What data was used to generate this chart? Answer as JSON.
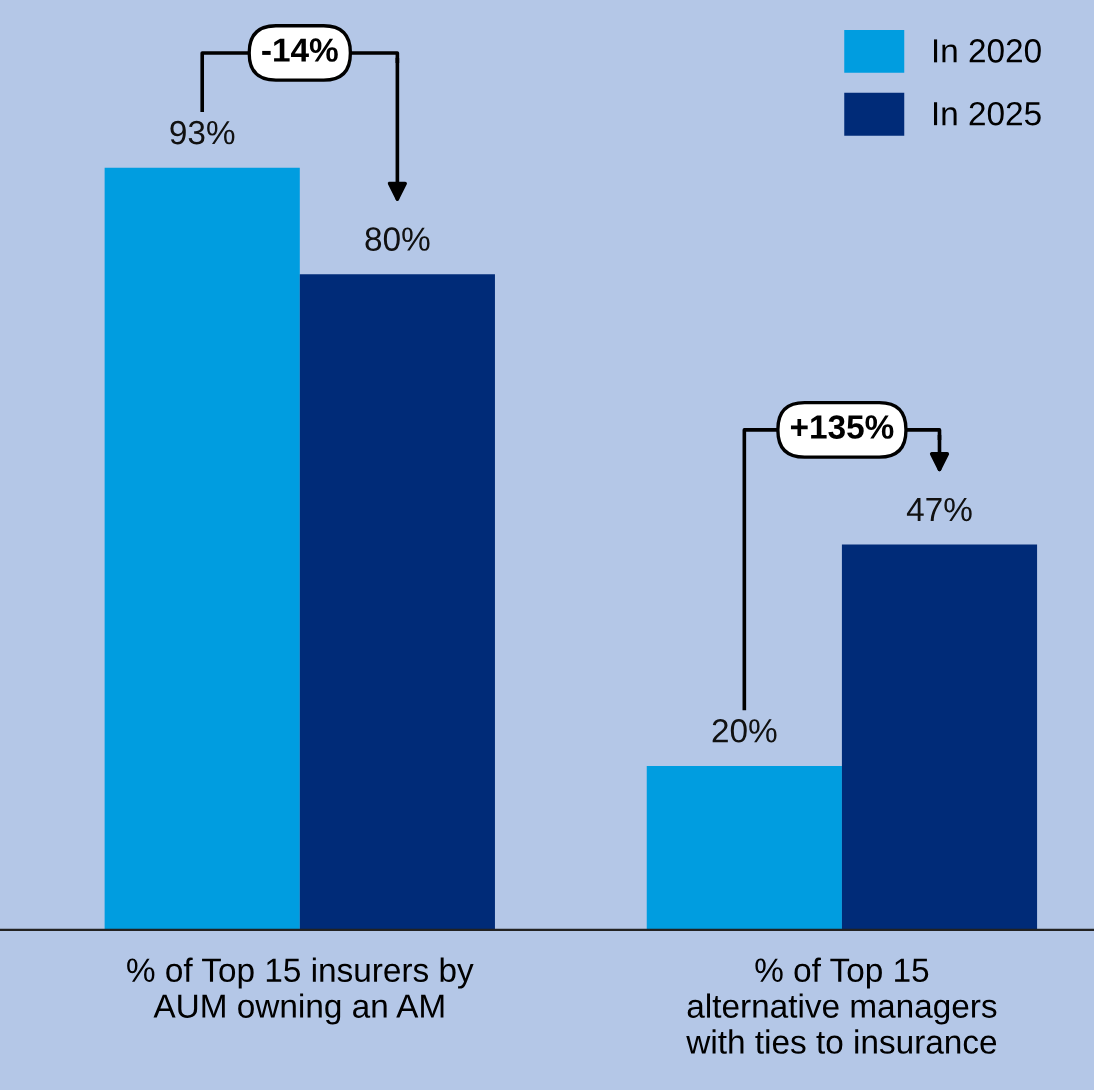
{
  "chart_data": {
    "type": "bar",
    "categories": [
      "% of Top 15 insurers by\nAUM owning an AM",
      "% of Top 15\nalternative managers\nwith ties to insurance"
    ],
    "series": [
      {
        "name": "In 2020",
        "color": "#009de0",
        "values": [
          93,
          20
        ],
        "value_labels": [
          "93%",
          "20%"
        ]
      },
      {
        "name": "In 2025",
        "color": "#002b78",
        "values": [
          80,
          47
        ],
        "value_labels": [
          "80%",
          "47%"
        ]
      }
    ],
    "annotations": [
      "-14%",
      "+135%"
    ],
    "legend": "top right",
    "grid": false
  }
}
